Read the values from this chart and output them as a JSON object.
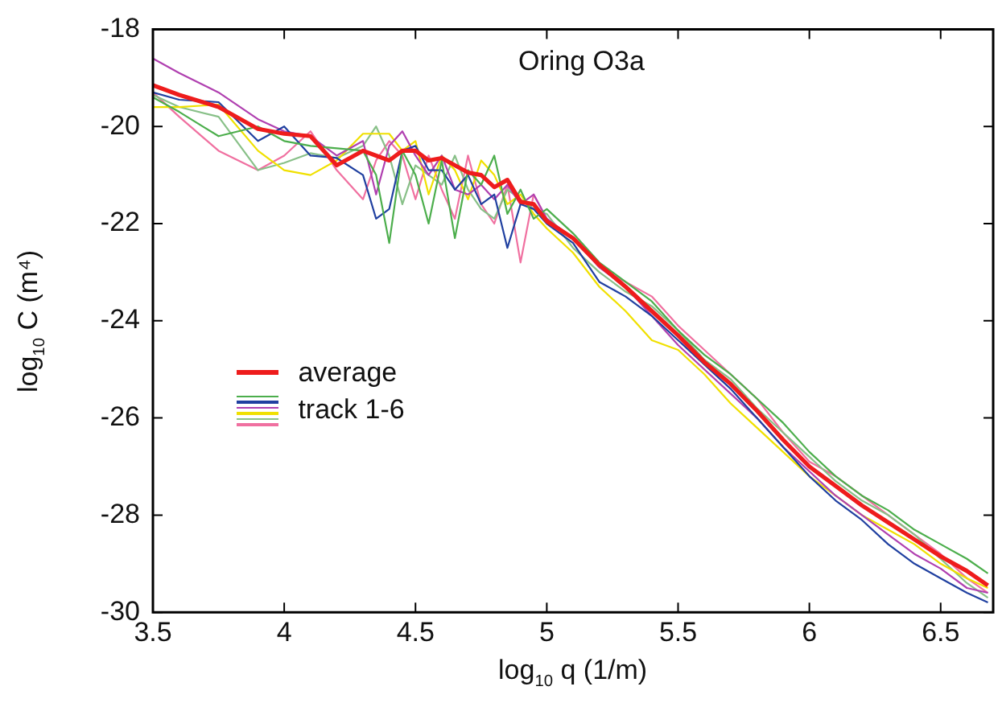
{
  "chart_data": {
    "type": "line",
    "title": "Oring O3a",
    "xlabel": "log$_{10}$ q  (1/m)",
    "ylabel": "log$_{10}$ C  (m⁴)",
    "x": [
      3.5,
      3.6,
      3.75,
      3.9,
      4.0,
      4.1,
      4.2,
      4.3,
      4.35,
      4.4,
      4.45,
      4.5,
      4.55,
      4.6,
      4.65,
      4.7,
      4.75,
      4.8,
      4.85,
      4.9,
      4.95,
      5.0,
      5.1,
      5.2,
      5.3,
      5.4,
      5.5,
      5.6,
      5.7,
      5.8,
      5.9,
      6.0,
      6.1,
      6.2,
      6.3,
      6.4,
      6.5,
      6.6,
      6.68
    ],
    "series": [
      {
        "name": "average",
        "color": "#ee1c1c",
        "values": [
          -19.15,
          -19.35,
          -19.6,
          -20.05,
          -20.15,
          -20.2,
          -20.8,
          -20.5,
          -20.6,
          -20.7,
          -20.5,
          -20.5,
          -20.7,
          -20.65,
          -20.8,
          -20.95,
          -21.0,
          -21.25,
          -21.1,
          -21.55,
          -21.6,
          -21.95,
          -22.3,
          -22.85,
          -23.3,
          -23.8,
          -24.3,
          -24.85,
          -25.3,
          -25.85,
          -26.45,
          -27.0,
          -27.4,
          -27.8,
          -28.15,
          -28.5,
          -28.85,
          -29.15,
          -29.45
        ]
      },
      {
        "name": "track 1-6",
        "color": "#4cae4c",
        "values": [
          -19.4,
          -19.7,
          -20.2,
          -20.0,
          -20.3,
          -20.4,
          -20.45,
          -20.5,
          -21.0,
          -22.4,
          -20.5,
          -21.0,
          -22.0,
          -20.7,
          -22.3,
          -20.9,
          -21.2,
          -20.6,
          -21.8,
          -21.3,
          -21.9,
          -21.7,
          -22.2,
          -22.8,
          -23.2,
          -23.6,
          -24.2,
          -24.7,
          -25.1,
          -25.6,
          -26.1,
          -26.7,
          -27.2,
          -27.6,
          -27.9,
          -28.3,
          -28.6,
          -28.9,
          -29.2
        ]
      },
      {
        "color": "#2040a0",
        "values": [
          -19.3,
          -19.45,
          -19.5,
          -20.3,
          -20.0,
          -20.6,
          -20.65,
          -21.0,
          -21.9,
          -21.7,
          -20.5,
          -20.4,
          -20.9,
          -20.9,
          -21.3,
          -21.0,
          -21.6,
          -21.4,
          -22.5,
          -21.6,
          -21.7,
          -22.0,
          -22.4,
          -23.2,
          -23.5,
          -23.9,
          -24.4,
          -24.9,
          -25.4,
          -26.0,
          -26.6,
          -27.2,
          -27.7,
          -28.1,
          -28.6,
          -29.0,
          -29.3,
          -29.6,
          -29.8
        ]
      },
      {
        "color": "#b040b0",
        "values": [
          -18.6,
          -18.9,
          -19.3,
          -19.85,
          -20.1,
          -20.2,
          -20.6,
          -20.3,
          -21.4,
          -20.4,
          -20.1,
          -20.6,
          -21.0,
          -20.6,
          -21.3,
          -21.4,
          -21.2,
          -21.5,
          -21.2,
          -21.6,
          -21.4,
          -21.9,
          -22.3,
          -22.9,
          -23.3,
          -23.9,
          -24.5,
          -25.0,
          -25.5,
          -26.0,
          -26.6,
          -27.1,
          -27.6,
          -28.0,
          -28.4,
          -28.8,
          -29.1,
          -29.5,
          -29.6
        ]
      },
      {
        "color": "#f0e000",
        "values": [
          -19.6,
          -19.6,
          -19.55,
          -20.5,
          -20.9,
          -21.0,
          -20.7,
          -20.15,
          -20.15,
          -20.15,
          -20.5,
          -20.3,
          -21.4,
          -20.6,
          -20.9,
          -21.5,
          -20.7,
          -21.0,
          -21.6,
          -21.4,
          -21.8,
          -22.1,
          -22.6,
          -23.3,
          -23.8,
          -24.4,
          -24.6,
          -25.1,
          -25.7,
          -26.2,
          -26.7,
          -27.2,
          -27.6,
          -28.0,
          -28.3,
          -28.6,
          -29.0,
          -29.3,
          -29.5
        ]
      },
      {
        "color": "#88c088",
        "values": [
          -19.35,
          -19.6,
          -19.8,
          -20.9,
          -20.75,
          -20.55,
          -20.65,
          -20.4,
          -20.0,
          -20.6,
          -21.6,
          -20.8,
          -21.0,
          -21.2,
          -20.6,
          -21.3,
          -21.7,
          -21.9,
          -21.3,
          -21.5,
          -21.7,
          -21.8,
          -22.5,
          -23.0,
          -23.4,
          -23.7,
          -24.2,
          -24.8,
          -25.2,
          -25.8,
          -26.3,
          -26.8,
          -27.3,
          -27.7,
          -28.0,
          -28.4,
          -28.9,
          -29.4,
          -29.7
        ]
      },
      {
        "color": "#f070a0",
        "values": [
          -19.3,
          -19.8,
          -20.5,
          -20.9,
          -20.6,
          -20.1,
          -20.9,
          -21.5,
          -20.7,
          -20.3,
          -20.6,
          -21.5,
          -20.6,
          -21.3,
          -21.9,
          -20.6,
          -21.6,
          -22.0,
          -21.2,
          -22.8,
          -21.4,
          -21.9,
          -22.3,
          -22.9,
          -23.2,
          -23.5,
          -24.1,
          -24.6,
          -25.1,
          -25.6,
          -26.3,
          -26.9,
          -27.2,
          -27.6,
          -28.0,
          -28.4,
          -28.8,
          -29.3,
          -29.6
        ]
      }
    ],
    "xlim": [
      3.5,
      6.7
    ],
    "xticks": [
      3.5,
      4,
      4.5,
      5,
      5.5,
      6,
      6.5
    ],
    "ylim": [
      -30,
      -18
    ],
    "yticks": [
      -30,
      -28,
      -26,
      -24,
      -22,
      -20,
      -18
    ],
    "grid": false,
    "legend": "left",
    "marker": "none",
    "line_style": "solid"
  }
}
